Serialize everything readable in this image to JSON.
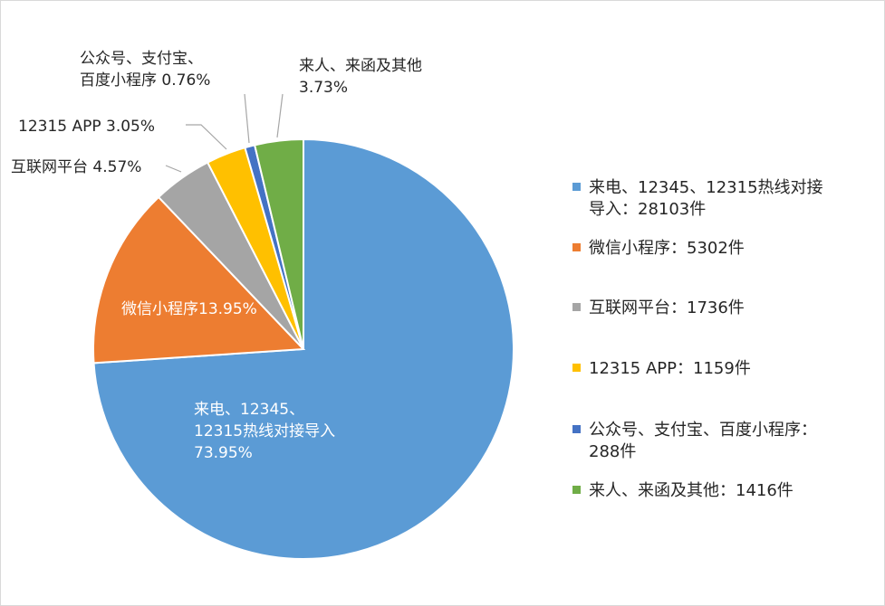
{
  "chart_data": {
    "type": "pie",
    "slices": [
      {
        "legend_lines": [
          "来电、12345、12315热线对接",
          "导入：28103件"
        ],
        "label_lines": [
          "来电、12345、",
          "12315热线对接导入",
          "73.95%"
        ],
        "percent": 73.95,
        "count": 28103,
        "color": "#5B9BD5"
      },
      {
        "legend_lines": [
          "微信小程序：5302件"
        ],
        "label_lines": [
          "微信小程序13.95%"
        ],
        "percent": 13.95,
        "count": 5302,
        "color": "#ED7D31"
      },
      {
        "legend_lines": [
          "互联网平台：1736件"
        ],
        "label_lines": [
          "互联网平台 4.57%"
        ],
        "percent": 4.57,
        "count": 1736,
        "color": "#A5A5A5"
      },
      {
        "legend_lines": [
          "12315 APP：1159件"
        ],
        "label_lines": [
          "12315 APP 3.05%"
        ],
        "percent": 3.05,
        "count": 1159,
        "color": "#FFC000"
      },
      {
        "legend_lines": [
          "公众号、支付宝、百度小程序：",
          "288件"
        ],
        "label_lines": [
          "公众号、支付宝、",
          "百度小程序 0.76%"
        ],
        "percent": 0.76,
        "count": 288,
        "color": "#4472C4"
      },
      {
        "legend_lines": [
          "来人、来函及其他：1416件"
        ],
        "label_lines": [
          "来人、来函及其他",
          "3.73%"
        ],
        "percent": 3.73,
        "count": 1416,
        "color": "#70AD47"
      }
    ],
    "legend_position": "right",
    "start_angle_deg": 0,
    "direction": "clockwise"
  }
}
